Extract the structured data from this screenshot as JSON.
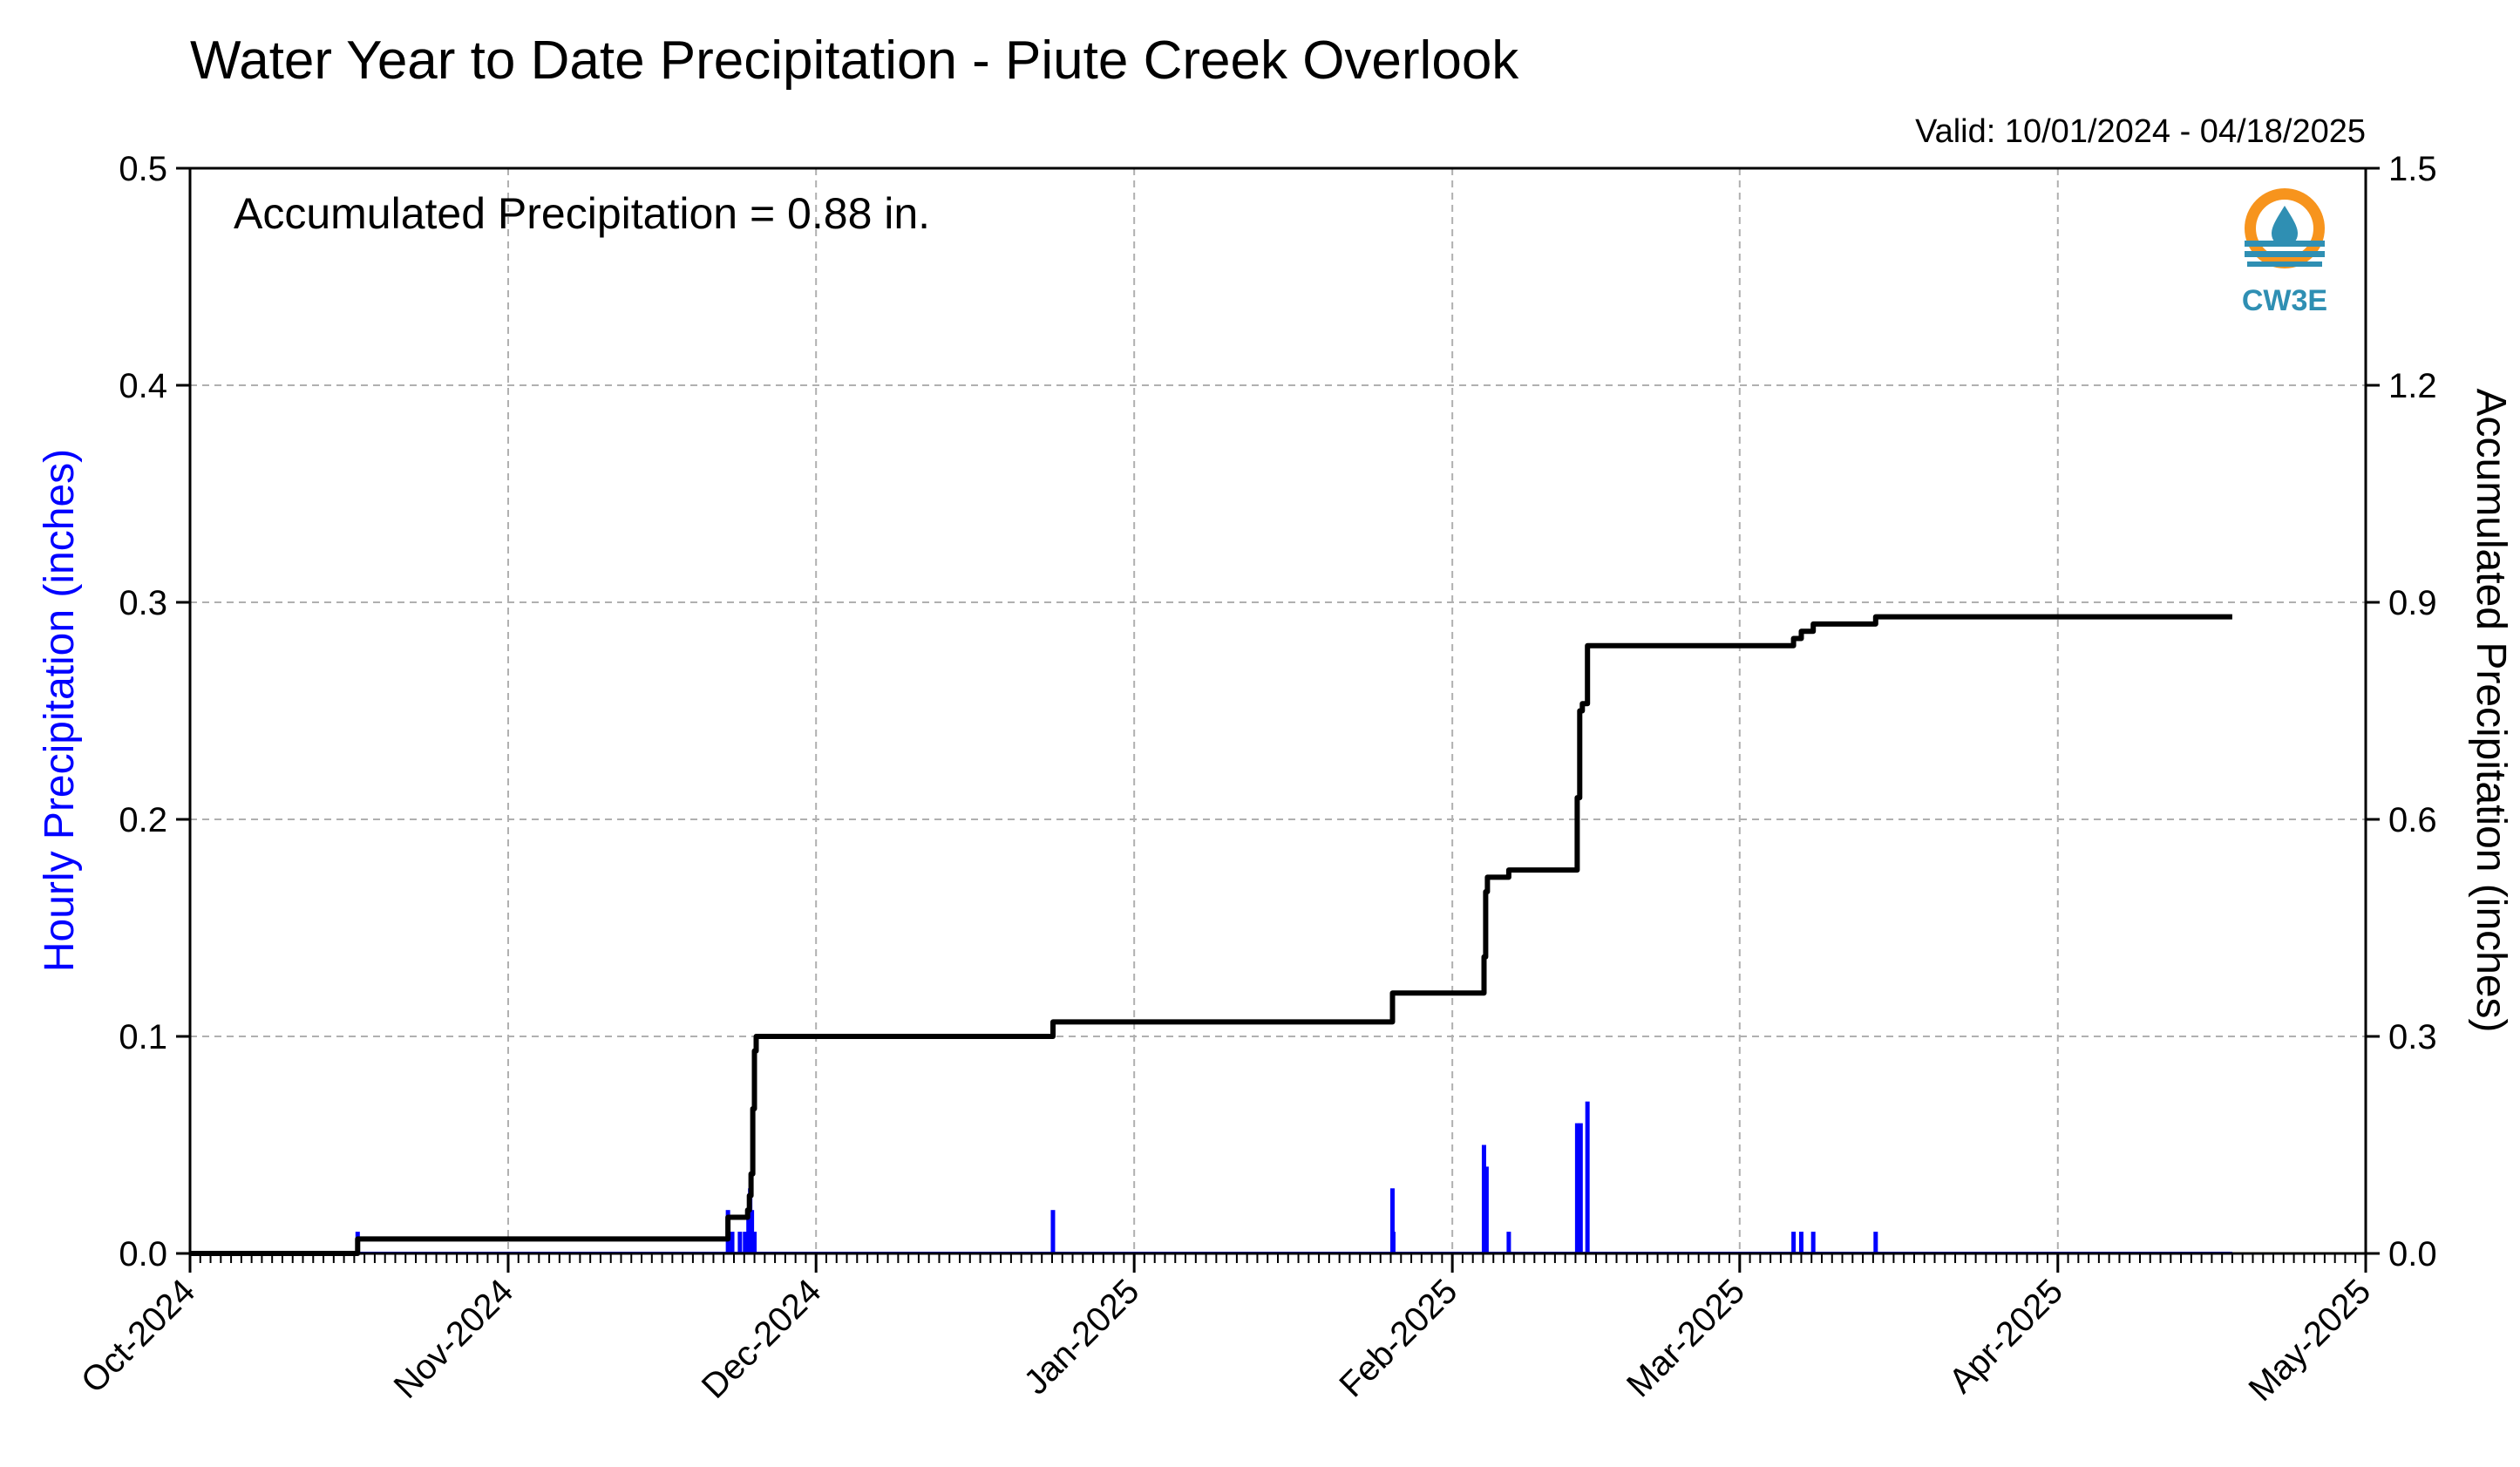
{
  "chart_data": {
    "type": "bar",
    "title": "Water Year to Date Precipitation - Piute Creek Overlook",
    "subtitle": "Valid: 10/01/2024 - 04/18/2025",
    "annotation": "Accumulated Precipitation = 0.88 in.",
    "logo_text": "CW3E",
    "ylabel": "Hourly Precipitation (inches)",
    "ylabel_right": "Accumulated Precipitation (inches)",
    "xlim": [
      "2024-10-01",
      "2025-05-01"
    ],
    "ylim": [
      0,
      0.5
    ],
    "ylim_right": [
      0,
      1.5
    ],
    "grid": true,
    "xticks": [
      {
        "date": "2024-10-01",
        "label": "Oct-2024"
      },
      {
        "date": "2024-11-01",
        "label": "Nov-2024"
      },
      {
        "date": "2024-12-01",
        "label": "Dec-2024"
      },
      {
        "date": "2025-01-01",
        "label": "Jan-2025"
      },
      {
        "date": "2025-02-01",
        "label": "Feb-2025"
      },
      {
        "date": "2025-03-01",
        "label": "Mar-2025"
      },
      {
        "date": "2025-04-01",
        "label": "Apr-2025"
      },
      {
        "date": "2025-05-01",
        "label": "May-2025"
      }
    ],
    "yticks_left": [
      "0.0",
      "0.1",
      "0.2",
      "0.3",
      "0.4",
      "0.5"
    ],
    "yticks_right": [
      "0.0",
      "0.3",
      "0.6",
      "0.9",
      "1.2",
      "1.5"
    ],
    "colors": {
      "hourly": "#0000ff",
      "accumulated": "#000000"
    },
    "series": [
      {
        "type": "bar",
        "axis": "left",
        "points": [
          {
            "x": "2024-10-17 08:00",
            "y": 0.01
          },
          {
            "x": "2024-11-22 10:00",
            "y": 0.02
          },
          {
            "x": "2024-11-22 20:00",
            "y": 0.01
          },
          {
            "x": "2024-11-23 14:00",
            "y": 0.01
          },
          {
            "x": "2024-11-24 02:00",
            "y": 0.01
          },
          {
            "x": "2024-11-24 10:00",
            "y": 0.02
          },
          {
            "x": "2024-11-24 14:00",
            "y": 0.03
          },
          {
            "x": "2024-11-24 18:00",
            "y": 0.02
          },
          {
            "x": "2024-11-25 00:00",
            "y": 0.01
          },
          {
            "x": "2024-12-24 02:00",
            "y": 0.02
          },
          {
            "x": "2025-01-26 04:00",
            "y": 0.03
          },
          {
            "x": "2025-01-26 06:00",
            "y": 0.01
          },
          {
            "x": "2025-02-04 02:00",
            "y": 0.05
          },
          {
            "x": "2025-02-04 08:00",
            "y": 0.04
          },
          {
            "x": "2025-02-06 12:00",
            "y": 0.01
          },
          {
            "x": "2025-02-13 04:00",
            "y": 0.06
          },
          {
            "x": "2025-02-13 12:00",
            "y": 0.06
          },
          {
            "x": "2025-02-14 04:00",
            "y": 0.07
          },
          {
            "x": "2025-03-06 06:00",
            "y": 0.01
          },
          {
            "x": "2025-03-07 00:00",
            "y": 0.01
          },
          {
            "x": "2025-03-08 04:00",
            "y": 0.01
          },
          {
            "x": "2025-03-14 06:00",
            "y": 0.01
          }
        ]
      },
      {
        "type": "line",
        "axis": "right",
        "step": true,
        "points": [
          {
            "x": "2024-10-01 00:00",
            "y": 0.0
          },
          {
            "x": "2024-10-17 08:00",
            "y": 0.02
          },
          {
            "x": "2024-11-22 10:00",
            "y": 0.05
          },
          {
            "x": "2024-11-24 08:00",
            "y": 0.06
          },
          {
            "x": "2024-11-24 12:00",
            "y": 0.08
          },
          {
            "x": "2024-11-24 16:00",
            "y": 0.11
          },
          {
            "x": "2024-11-24 20:00",
            "y": 0.2
          },
          {
            "x": "2024-11-25 00:00",
            "y": 0.28
          },
          {
            "x": "2024-11-25 04:00",
            "y": 0.3
          },
          {
            "x": "2024-12-24 02:00",
            "y": 0.32
          },
          {
            "x": "2025-01-26 04:00",
            "y": 0.36
          },
          {
            "x": "2025-02-04 02:00",
            "y": 0.41
          },
          {
            "x": "2025-02-04 06:00",
            "y": 0.5
          },
          {
            "x": "2025-02-04 10:00",
            "y": 0.52
          },
          {
            "x": "2025-02-06 12:00",
            "y": 0.53
          },
          {
            "x": "2025-02-13 04:00",
            "y": 0.63
          },
          {
            "x": "2025-02-13 10:00",
            "y": 0.75
          },
          {
            "x": "2025-02-13 16:00",
            "y": 0.76
          },
          {
            "x": "2025-02-14 04:00",
            "y": 0.84
          },
          {
            "x": "2025-03-06 06:00",
            "y": 0.85
          },
          {
            "x": "2025-03-07 00:00",
            "y": 0.86
          },
          {
            "x": "2025-03-08 04:00",
            "y": 0.87
          },
          {
            "x": "2025-03-14 06:00",
            "y": 0.88
          },
          {
            "x": "2025-04-18 00:00",
            "y": 0.88
          }
        ]
      }
    ]
  }
}
